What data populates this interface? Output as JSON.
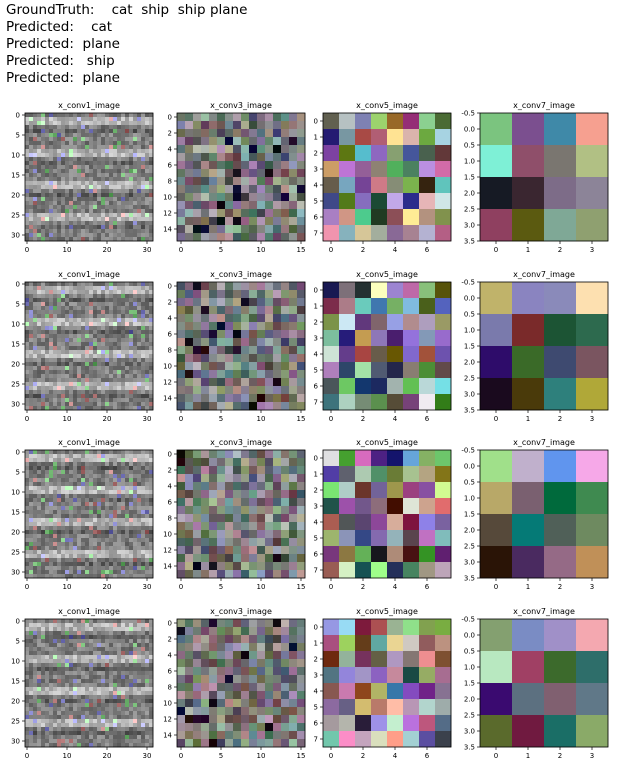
{
  "header": {
    "ground_truth_label": "GroundTruth:",
    "ground_truth": [
      "cat",
      "ship",
      "ship",
      "plane"
    ],
    "predicted_label": "Predicted:",
    "predicted": [
      "cat",
      "plane",
      "ship",
      "plane"
    ]
  },
  "chart_data": {
    "type": "heatmap",
    "grid_rows": 4,
    "grid_cols": 4,
    "grid": false,
    "legend": "none",
    "columns": [
      {
        "title": "x_conv1_image",
        "size": 32,
        "xticks": [
          0,
          10,
          20,
          30
        ],
        "yticks": [
          0,
          5,
          10,
          15,
          20,
          25,
          30
        ],
        "ylim": [
          31.5,
          -0.5
        ]
      },
      {
        "title": "x_conv3_image",
        "size": 16,
        "xticks": [
          0,
          5,
          10,
          15
        ],
        "yticks": [
          0,
          2,
          4,
          6,
          8,
          10,
          12,
          14
        ],
        "ylim": [
          15.5,
          -0.5
        ]
      },
      {
        "title": "x_conv5_image",
        "size": 8,
        "xticks": [
          0,
          2,
          4,
          6
        ],
        "yticks": [
          0,
          1,
          2,
          3,
          4,
          5,
          6,
          7
        ],
        "ylim": [
          7.5,
          -0.5
        ]
      },
      {
        "title": "x_conv7_image",
        "size": 4,
        "xticks": [
          0,
          1,
          2,
          3
        ],
        "yticks": [
          -0.5,
          0.0,
          0.5,
          1.0,
          1.5,
          2.0,
          2.5,
          3.0,
          3.5
        ],
        "ylim": [
          3.5,
          -0.5
        ]
      }
    ],
    "conv7_cells": [
      [
        [
          "#7bc47f",
          "#7b4f8f",
          "#3f89a8",
          "#f6a090"
        ],
        [
          "#7ef0d6",
          "#8f4f6a",
          "#7a7670",
          "#b1c084"
        ],
        [
          "#161a24",
          "#3a2630",
          "#7d6c88",
          "#8c8498"
        ],
        [
          "#8f4060",
          "#5b5a10",
          "#7fa896",
          "#8fa070"
        ]
      ],
      [
        [
          "#c0b36a",
          "#8a84c0",
          "#8a8aba",
          "#fde0b0"
        ],
        [
          "#7a7aac",
          "#7a2a2a",
          "#1c5434",
          "#2d6a4e"
        ],
        [
          "#2e0c6a",
          "#3a6a28",
          "#3e4a70",
          "#7a5560"
        ],
        [
          "#1a0a1e",
          "#4a3a0a",
          "#2e807c",
          "#b0a838"
        ]
      ],
      [
        [
          "#a0e08a",
          "#c0b0cc",
          "#6095ee",
          "#f6a8e8"
        ],
        [
          "#b8a868",
          "#7a6070",
          "#006a3c",
          "#3f8a50"
        ],
        [
          "#56493a",
          "#057a76",
          "#506058",
          "#6e8a60"
        ],
        [
          "#2a1406",
          "#4a2a60",
          "#956a86",
          "#c09058"
        ]
      ],
      [
        [
          "#84a070",
          "#7a8cc4",
          "#a090c8",
          "#f4a8b0"
        ],
        [
          "#b8e8c0",
          "#a04064",
          "#3c6a2c",
          "#2e6e6a"
        ],
        [
          "#3a0a70",
          "#5c7080",
          "#806070",
          "#607888"
        ],
        [
          "#5a6a2c",
          "#701a40",
          "#1a6e66",
          "#8aaa68"
        ]
      ]
    ]
  }
}
